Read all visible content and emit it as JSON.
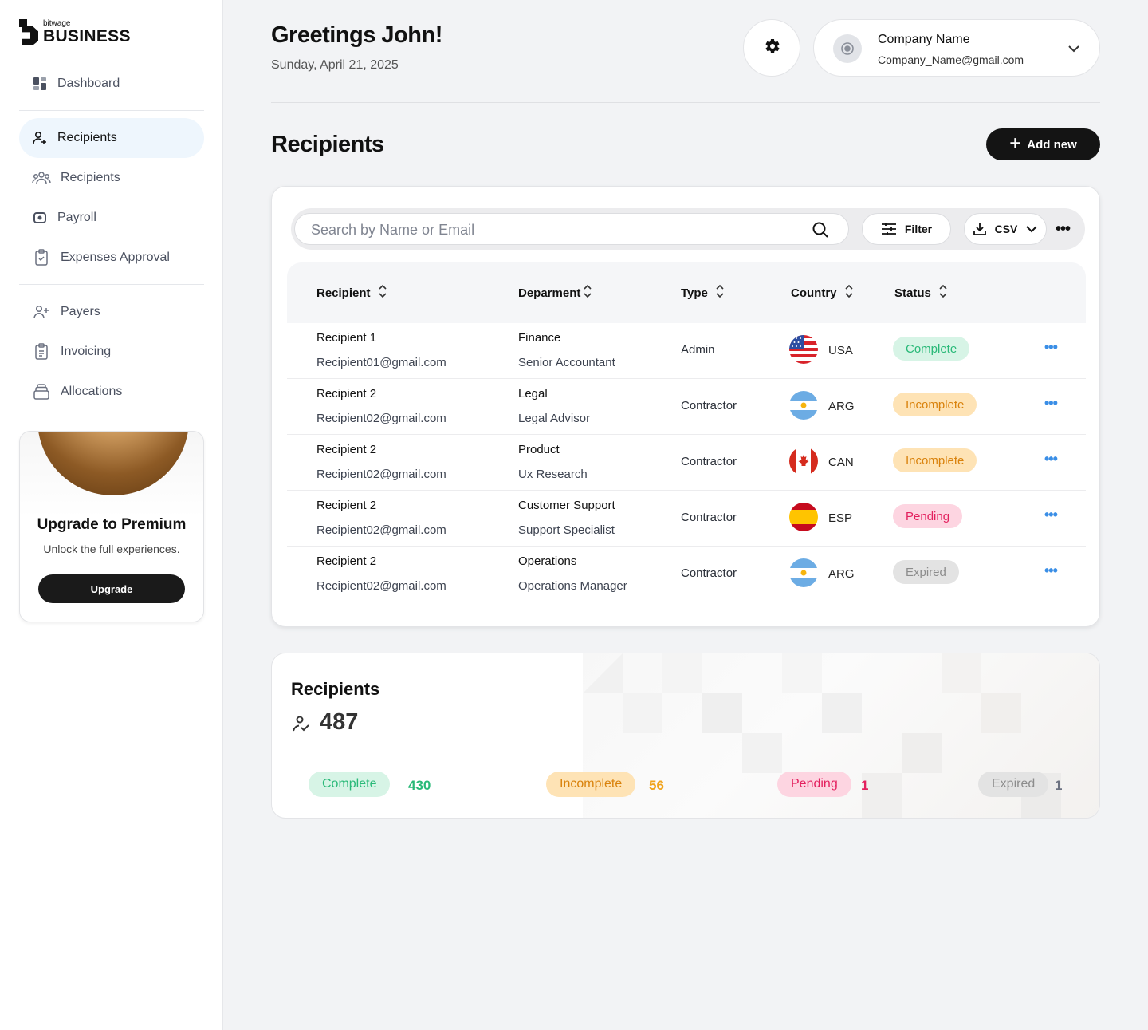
{
  "brand": {
    "small": "bitwage",
    "big": "BUSINESS"
  },
  "sidebar": {
    "items": [
      {
        "label": "Dashboard",
        "icon": "dashboard-icon"
      },
      {
        "label": "Recipients",
        "icon": "add-user-icon",
        "active": true
      },
      {
        "label": "Recipients",
        "icon": "group-icon"
      },
      {
        "label": "Payroll",
        "icon": "payroll-icon"
      },
      {
        "label": "Expenses Approval",
        "icon": "clipboard-check-icon"
      },
      {
        "label": "Payers",
        "icon": "payers-icon"
      },
      {
        "label": "Invoicing",
        "icon": "invoice-icon"
      },
      {
        "label": "Allocations",
        "icon": "allocations-icon"
      }
    ],
    "promo": {
      "title": "Upgrade to Premium",
      "subtitle": "Unlock the full experiences.",
      "button": "Upgrade"
    }
  },
  "header": {
    "greeting": "Greetings John!",
    "date": "Sunday, April 21, 2025",
    "account": {
      "name": "Company Name",
      "email": "Company_Name@gmail.com"
    }
  },
  "page": {
    "title": "Recipients",
    "add_button": "Add new"
  },
  "toolbar": {
    "search_placeholder": "Search by Name or Email",
    "filter_label": "Filter",
    "csv_label": "CSV"
  },
  "table": {
    "columns": [
      "Recipient",
      "Deparment",
      "Type",
      "Country",
      "Status"
    ],
    "rows": [
      {
        "name": "Recipient 1",
        "email": "Recipient01@gmail.com",
        "dept": "Finance",
        "role": "Senior Accountant",
        "type": "Admin",
        "country": "USA",
        "status": "Complete"
      },
      {
        "name": "Recipient 2",
        "email": "Recipient02@gmail.com",
        "dept": "Legal",
        "role": "Legal Advisor",
        "type": "Contractor",
        "country": "ARG",
        "status": "Incomplete"
      },
      {
        "name": "Recipient 2",
        "email": "Recipient02@gmail.com",
        "dept": "Product",
        "role": "Ux Research",
        "type": "Contractor",
        "country": "CAN",
        "status": "Incomplete"
      },
      {
        "name": "Recipient 2",
        "email": "Recipient02@gmail.com",
        "dept": "Customer Support",
        "role": "Support Specialist",
        "type": "Contractor",
        "country": "ESP",
        "status": "Pending"
      },
      {
        "name": "Recipient 2",
        "email": "Recipient02@gmail.com",
        "dept": "Operations",
        "role": "Operations Manager",
        "type": "Contractor",
        "country": "ARG",
        "status": "Expired"
      }
    ]
  },
  "summary": {
    "title": "Recipients",
    "total": "487",
    "stats": [
      {
        "label": "Complete",
        "count": "430"
      },
      {
        "label": "Incomplete",
        "count": "56"
      },
      {
        "label": "Pending",
        "count": "1"
      },
      {
        "label": "Expired",
        "count": "1"
      }
    ]
  },
  "colors": {
    "complete": "#29b978",
    "incomplete": "#d9820c",
    "pending": "#e3205e",
    "expired": "#8c8c8c",
    "accent": "#3a8ee6"
  }
}
